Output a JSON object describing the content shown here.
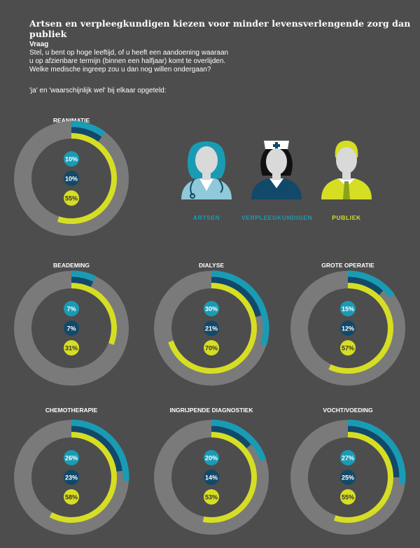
{
  "title": "Artsen en verpleegkundigen kiezen voor minder levensverlengende zorg dan publiek",
  "question_label": "Vraag",
  "question_lines": [
    "Stel, u bent op hoge leeftijd, of u heeft een aandoening waaraan",
    "u op afzienbare termijn (binnen een halfjaar) komt te overlijden.",
    "Welke medische ingreep zou u dan nog willen ondergaan?"
  ],
  "note": "'ja' en 'waarschijnlijk wel' bij elkaar opgeteld:",
  "colors": {
    "background": "#4d4d4d",
    "track": "#7a7a7a",
    "artsen": "#1a9bb4",
    "verpleegkundigen": "#12496a",
    "publiek": "#d6de23"
  },
  "legend": [
    {
      "key": "artsen",
      "label": "ARTSEN",
      "icon": "doctor-icon",
      "color": "#1a9bb4"
    },
    {
      "key": "verpleegkundigen",
      "label": "VERPLEEGKUNDIGEN",
      "icon": "nurse-icon",
      "color": "#1a9bb4"
    },
    {
      "key": "publiek",
      "label": "PUBLIEK",
      "icon": "person-icon",
      "color": "#d6de23"
    }
  ],
  "chart_data": {
    "type": "radial-bar",
    "series": [
      {
        "key": "artsen",
        "name": "ARTSEN"
      },
      {
        "key": "verpleegkundigen",
        "name": "VERPLEEGKUNDIGEN"
      },
      {
        "key": "publiek",
        "name": "PUBLIEK"
      }
    ],
    "max": 100,
    "unit": "%",
    "charts": [
      {
        "name": "REANIMATIE",
        "values": [
          10,
          10,
          55
        ]
      },
      {
        "name": "BEADEMING",
        "values": [
          7,
          7,
          31
        ]
      },
      {
        "name": "DIALYSE",
        "values": [
          30,
          21,
          70
        ]
      },
      {
        "name": "GROTE OPERATIE",
        "values": [
          15,
          12,
          57
        ]
      },
      {
        "name": "CHEMOTHERAPIE",
        "values": [
          26,
          23,
          58
        ]
      },
      {
        "name": "INGRIJPENDE DIAGNOSTIEK",
        "values": [
          20,
          14,
          53
        ]
      },
      {
        "name": "VOCHT/VOEDING",
        "values": [
          27,
          25,
          55
        ]
      }
    ]
  }
}
